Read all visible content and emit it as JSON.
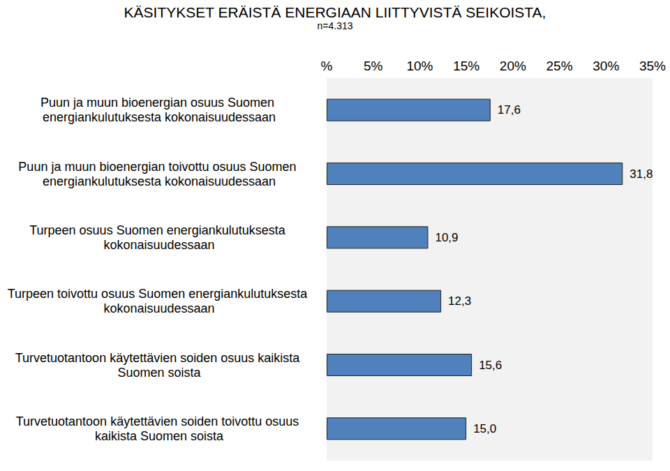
{
  "chart_data": {
    "type": "bar",
    "orientation": "horizontal",
    "title": "KÄSITYKSET ERÄISTÄ ENERGIAAN LIITTYVISTÄ SEIKOISTA,",
    "subtitle": "n=4.313",
    "categories": [
      "Puun ja muun bioenergian osuus Suomen energiankulutuksesta kokonaisuudessaan",
      "Puun ja muun bioenergian toivottu osuus Suomen energiankulutuksesta kokonaisuudessaan",
      "Turpeen osuus Suomen energiankulutuksesta kokonaisuudessaan",
      "Turpeen toivottu osuus Suomen energiankulutuksesta kokonaisuudessaan",
      "Turvetuotantoon käytettävien soiden osuus kaikista Suomen soista",
      "Turvetuotantoon käytettävien soiden toivottu osuus kaikista Suomen soista"
    ],
    "values": [
      17.6,
      31.8,
      10.9,
      12.3,
      15.6,
      15.0
    ],
    "value_labels": [
      "17,6",
      "31,8",
      "10,9",
      "12,3",
      "15,6",
      "15,0"
    ],
    "data_labels": true,
    "color": "#4f81bd",
    "xlim": [
      0,
      35
    ],
    "xticks": [
      {
        "value": 0,
        "label": "%"
      },
      {
        "value": 5,
        "label": "5%"
      },
      {
        "value": 10,
        "label": "10%"
      },
      {
        "value": 15,
        "label": "15%"
      },
      {
        "value": 20,
        "label": "20%"
      },
      {
        "value": 25,
        "label": "25%"
      },
      {
        "value": 30,
        "label": "30%"
      },
      {
        "value": 35,
        "label": "35%"
      }
    ],
    "grid": false
  }
}
